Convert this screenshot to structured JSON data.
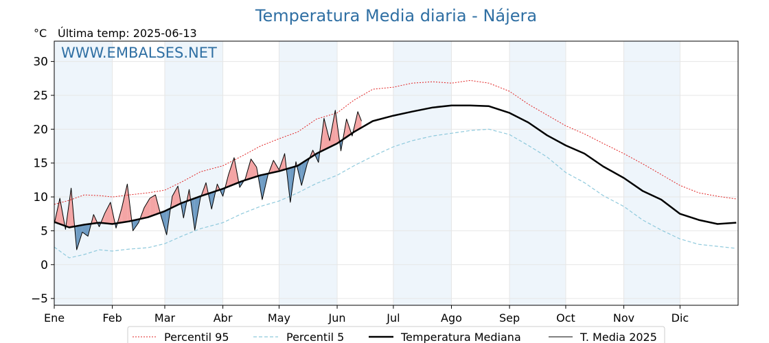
{
  "chart_data": {
    "type": "line",
    "title": "Temperatura Media diaria - Nájera",
    "unit_label": "°C",
    "last_temp_label": "Última temp: 2025-06-13",
    "watermark": "WWW.EMBALSES.NET",
    "ylim": [
      -6,
      33
    ],
    "y_ticks": [
      -5,
      0,
      5,
      10,
      15,
      20,
      25,
      30
    ],
    "x_ticks": [
      {
        "label": "Ene",
        "day": 0
      },
      {
        "label": "Feb",
        "day": 31
      },
      {
        "label": "Mar",
        "day": 59
      },
      {
        "label": "Abr",
        "day": 90
      },
      {
        "label": "May",
        "day": 120
      },
      {
        "label": "Jun",
        "day": 151
      },
      {
        "label": "Jul",
        "day": 181
      },
      {
        "label": "Ago",
        "day": 212
      },
      {
        "label": "Sep",
        "day": 243
      },
      {
        "label": "Oct",
        "day": 273
      },
      {
        "label": "Nov",
        "day": 304
      },
      {
        "label": "Dic",
        "day": 334
      }
    ],
    "shaded_months": [
      "Ene",
      "Mar",
      "May",
      "Jul",
      "Sep",
      "Nov"
    ],
    "grid": true,
    "legend_position": "bottom",
    "colors": {
      "p95": "#e02020",
      "p5": "#8ec9dc",
      "median": "#000000",
      "current": "#000000",
      "above_fill": "#f4a5a5",
      "below_fill": "#6f9cc4",
      "title": "#2f6fa3",
      "band": "#eef5fb"
    },
    "series": [
      {
        "name": "Percentil 95",
        "x": [
          0,
          8,
          16,
          24,
          31,
          40,
          50,
          59,
          68,
          78,
          90,
          100,
          110,
          120,
          130,
          140,
          151,
          160,
          170,
          181,
          191,
          202,
          212,
          222,
          232,
          243,
          253,
          263,
          273,
          283,
          293,
          304,
          314,
          324,
          334,
          344,
          354,
          364
        ],
        "values": [
          8.9,
          9.5,
          10.3,
          10.2,
          10.0,
          10.3,
          10.6,
          11.0,
          12.2,
          13.7,
          14.6,
          16.0,
          17.5,
          18.6,
          19.6,
          21.5,
          22.4,
          24.3,
          25.9,
          26.2,
          26.8,
          27.0,
          26.8,
          27.2,
          26.8,
          25.6,
          23.7,
          22.1,
          20.5,
          19.3,
          17.9,
          16.4,
          14.9,
          13.3,
          11.7,
          10.6,
          10.1,
          9.7
        ]
      },
      {
        "name": "Percentil 5",
        "x": [
          0,
          8,
          16,
          24,
          31,
          40,
          50,
          59,
          68,
          78,
          90,
          100,
          110,
          120,
          130,
          140,
          151,
          160,
          170,
          181,
          191,
          202,
          212,
          222,
          232,
          243,
          253,
          263,
          273,
          283,
          293,
          304,
          314,
          324,
          334,
          344,
          354,
          364
        ],
        "values": [
          2.6,
          1.0,
          1.5,
          2.2,
          2.0,
          2.3,
          2.5,
          3.1,
          4.2,
          5.3,
          6.2,
          7.5,
          8.6,
          9.4,
          10.6,
          12.0,
          13.2,
          14.6,
          16.0,
          17.4,
          18.3,
          19.0,
          19.4,
          19.8,
          20.0,
          19.2,
          17.6,
          15.9,
          13.6,
          12.1,
          10.2,
          8.6,
          6.6,
          5.1,
          3.8,
          3.0,
          2.7,
          2.4
        ]
      },
      {
        "name": "Temperatura Mediana",
        "x": [
          0,
          8,
          16,
          24,
          31,
          40,
          50,
          59,
          68,
          78,
          90,
          100,
          110,
          120,
          130,
          140,
          151,
          160,
          170,
          181,
          191,
          202,
          212,
          222,
          232,
          243,
          253,
          263,
          273,
          283,
          293,
          304,
          314,
          324,
          334,
          344,
          354,
          364
        ],
        "values": [
          6.3,
          5.5,
          5.9,
          6.2,
          6.0,
          6.4,
          7.0,
          7.9,
          9.1,
          10.1,
          11.2,
          12.3,
          13.2,
          13.8,
          14.6,
          16.4,
          17.9,
          19.6,
          21.2,
          22.0,
          22.6,
          23.2,
          23.5,
          23.5,
          23.4,
          22.4,
          21.0,
          19.1,
          17.6,
          16.4,
          14.5,
          12.8,
          10.9,
          9.6,
          7.5,
          6.6,
          6.0,
          6.2
        ]
      },
      {
        "name": "T. Media 2025",
        "x": [
          0,
          3,
          6,
          9,
          12,
          15,
          18,
          21,
          24,
          27,
          30,
          33,
          36,
          39,
          42,
          45,
          48,
          51,
          54,
          57,
          60,
          63,
          66,
          69,
          72,
          75,
          78,
          81,
          84,
          87,
          90,
          93,
          96,
          99,
          102,
          105,
          108,
          111,
          114,
          117,
          120,
          123,
          126,
          129,
          132,
          135,
          138,
          141,
          144,
          147,
          150,
          153,
          156,
          159,
          162,
          164
        ],
        "values": [
          6.0,
          9.8,
          5.2,
          11.3,
          2.2,
          4.8,
          4.2,
          7.4,
          5.6,
          7.6,
          9.2,
          5.4,
          8.3,
          11.9,
          5.0,
          6.2,
          8.4,
          9.8,
          10.3,
          7.2,
          4.4,
          10.1,
          11.6,
          6.9,
          11.1,
          5.1,
          9.8,
          12.1,
          8.2,
          11.9,
          10.1,
          13.3,
          15.8,
          11.4,
          12.7,
          15.6,
          14.4,
          9.6,
          13.2,
          15.4,
          14.0,
          16.4,
          9.2,
          15.2,
          11.7,
          14.9,
          16.9,
          15.1,
          21.6,
          18.3,
          22.8,
          16.8,
          21.5,
          19.0,
          22.6,
          21.2
        ]
      }
    ]
  },
  "legend": {
    "p95_label": "Percentil 95",
    "p5_label": "Percentil 5",
    "median_label": "Temperatura Mediana",
    "current_label": "T. Media 2025"
  }
}
